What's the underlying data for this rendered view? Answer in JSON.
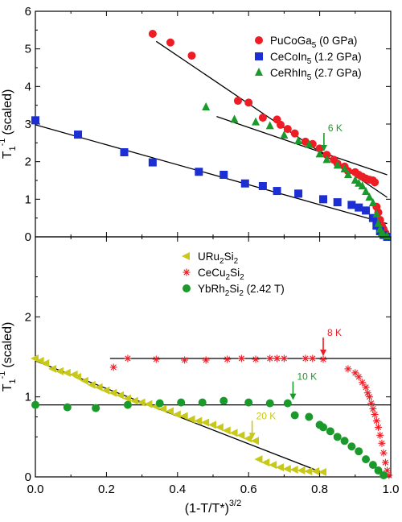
{
  "chart_data": [
    {
      "type": "scatter",
      "ylabel": "T",
      "ylabel_sub": "1",
      "ylabel_sup": "-1",
      "ylabel_suffix": "(scaled)",
      "xlim": [
        0,
        1
      ],
      "ylim": [
        0,
        6
      ],
      "yticks": [
        "0",
        "1",
        "2",
        "3",
        "4",
        "5",
        "6"
      ],
      "grid": false,
      "legend_position": "top-right",
      "series": [
        {
          "name": "PuCoGa",
          "name_sub": "5",
          "name_suffix": " (0 GPa)",
          "marker": "circle",
          "color": "#ee1c24",
          "points": [
            [
              0.33,
              5.4
            ],
            [
              0.38,
              5.17
            ],
            [
              0.44,
              4.82
            ],
            [
              0.57,
              3.62
            ],
            [
              0.6,
              3.57
            ],
            [
              0.64,
              3.17
            ],
            [
              0.68,
              3.12
            ],
            [
              0.69,
              2.98
            ],
            [
              0.71,
              2.87
            ],
            [
              0.73,
              2.75
            ],
            [
              0.76,
              2.53
            ],
            [
              0.78,
              2.47
            ],
            [
              0.8,
              2.35
            ],
            [
              0.82,
              2.18
            ],
            [
              0.84,
              2.05
            ],
            [
              0.85,
              1.95
            ],
            [
              0.87,
              1.87
            ],
            [
              0.88,
              1.75
            ],
            [
              0.9,
              1.72
            ],
            [
              0.91,
              1.65
            ],
            [
              0.92,
              1.6
            ],
            [
              0.93,
              1.55
            ],
            [
              0.94,
              1.52
            ],
            [
              0.95,
              1.5
            ],
            [
              0.955,
              1.45
            ],
            [
              0.96,
              0.8
            ],
            [
              0.965,
              0.65
            ],
            [
              0.97,
              0.45
            ],
            [
              0.975,
              0.3
            ],
            [
              0.98,
              0.2
            ],
            [
              0.985,
              0.1
            ]
          ]
        },
        {
          "name": "CeCoIn",
          "name_sub": "5",
          "name_suffix": " (1.2 GPa)",
          "marker": "square",
          "color": "#1c2fd4",
          "points": [
            [
              0.0,
              3.1
            ],
            [
              0.12,
              2.72
            ],
            [
              0.25,
              2.25
            ],
            [
              0.33,
              1.98
            ],
            [
              0.46,
              1.73
            ],
            [
              0.53,
              1.65
            ],
            [
              0.59,
              1.42
            ],
            [
              0.64,
              1.35
            ],
            [
              0.68,
              1.22
            ],
            [
              0.74,
              1.15
            ],
            [
              0.81,
              1.0
            ],
            [
              0.85,
              0.92
            ],
            [
              0.89,
              0.85
            ],
            [
              0.91,
              0.78
            ],
            [
              0.93,
              0.7
            ],
            [
              0.95,
              0.5
            ],
            [
              0.96,
              0.3
            ],
            [
              0.97,
              0.15
            ],
            [
              0.98,
              0.05
            ],
            [
              0.99,
              0.0
            ]
          ]
        },
        {
          "name": "CeRhIn",
          "name_sub": "5",
          "name_suffix": " (2.7 GPa)",
          "marker": "triangle-up",
          "color": "#1a9a2a",
          "points": [
            [
              0.48,
              3.45
            ],
            [
              0.56,
              3.12
            ],
            [
              0.62,
              3.05
            ],
            [
              0.66,
              2.95
            ],
            [
              0.7,
              2.7
            ],
            [
              0.74,
              2.55
            ],
            [
              0.77,
              2.45
            ],
            [
              0.8,
              2.2
            ],
            [
              0.82,
              2.05
            ],
            [
              0.85,
              1.9
            ],
            [
              0.87,
              1.8
            ],
            [
              0.88,
              1.65
            ],
            [
              0.9,
              1.5
            ],
            [
              0.91,
              1.42
            ],
            [
              0.92,
              1.35
            ],
            [
              0.93,
              1.2
            ],
            [
              0.94,
              1.05
            ],
            [
              0.95,
              0.9
            ],
            [
              0.96,
              0.6
            ],
            [
              0.965,
              0.35
            ],
            [
              0.97,
              0.2
            ],
            [
              0.975,
              0.1
            ],
            [
              0.98,
              0.05
            ],
            [
              0.99,
              0.02
            ]
          ]
        }
      ],
      "fit_lines": [
        {
          "color": "#000000",
          "from": [
            0.34,
            5.2
          ],
          "to": [
            0.99,
            1.05
          ]
        },
        {
          "color": "#000000",
          "from": [
            0.51,
            3.2
          ],
          "to": [
            0.99,
            1.65
          ]
        },
        {
          "color": "#000000",
          "from": [
            0.0,
            2.98
          ],
          "to": [
            0.99,
            0.35
          ]
        }
      ],
      "annotations": [
        {
          "text": "6 K",
          "color": "#1a9a2a",
          "x": 0.812,
          "y": 2.25,
          "arrow": "down"
        }
      ]
    },
    {
      "type": "scatter",
      "xlabel": "(1-T/T*)",
      "xlabel_sup": "3/2",
      "ylabel": "T",
      "ylabel_sub": "1",
      "ylabel_sup": "-1",
      "ylabel_suffix": "(scaled)",
      "xlim": [
        0,
        1
      ],
      "ylim": [
        0,
        3
      ],
      "xticks": [
        "0.0",
        "0.2",
        "0.4",
        "0.6",
        "0.8",
        "1.0"
      ],
      "yticks": [
        "0",
        "1",
        "2"
      ],
      "grid": false,
      "legend_position": "top-center",
      "series": [
        {
          "name": "URu",
          "name_sub": "2",
          "name_suffix": "Si",
          "name_sub2": "2",
          "marker": "triangle-left",
          "color": "#c8c818",
          "points": [
            [
              0.0,
              1.48
            ],
            [
              0.015,
              1.45
            ],
            [
              0.03,
              1.42
            ],
            [
              0.05,
              1.35
            ],
            [
              0.07,
              1.32
            ],
            [
              0.09,
              1.3
            ],
            [
              0.11,
              1.28
            ],
            [
              0.12,
              1.25
            ],
            [
              0.14,
              1.2
            ],
            [
              0.16,
              1.15
            ],
            [
              0.18,
              1.12
            ],
            [
              0.2,
              1.08
            ],
            [
              0.22,
              1.05
            ],
            [
              0.24,
              1.02
            ],
            [
              0.26,
              0.98
            ],
            [
              0.28,
              0.95
            ],
            [
              0.3,
              0.93
            ],
            [
              0.32,
              0.91
            ],
            [
              0.34,
              0.88
            ],
            [
              0.36,
              0.85
            ],
            [
              0.38,
              0.82
            ],
            [
              0.4,
              0.78
            ],
            [
              0.42,
              0.76
            ],
            [
              0.44,
              0.72
            ],
            [
              0.46,
              0.7
            ],
            [
              0.48,
              0.68
            ],
            [
              0.5,
              0.65
            ],
            [
              0.52,
              0.62
            ],
            [
              0.54,
              0.58
            ],
            [
              0.56,
              0.55
            ],
            [
              0.58,
              0.52
            ],
            [
              0.6,
              0.48
            ],
            [
              0.62,
              0.45
            ],
            [
              0.63,
              0.22
            ],
            [
              0.65,
              0.18
            ],
            [
              0.67,
              0.15
            ],
            [
              0.69,
              0.12
            ],
            [
              0.71,
              0.1
            ],
            [
              0.73,
              0.09
            ],
            [
              0.75,
              0.08
            ],
            [
              0.77,
              0.07
            ],
            [
              0.79,
              0.07
            ],
            [
              0.81,
              0.06
            ]
          ]
        },
        {
          "name": "CeCu",
          "name_sub": "2",
          "name_suffix": "Si",
          "name_sub2": "2",
          "marker": "asterisk",
          "color": "#ee1c24",
          "points": [
            [
              0.22,
              1.37
            ],
            [
              0.26,
              1.48
            ],
            [
              0.34,
              1.47
            ],
            [
              0.42,
              1.46
            ],
            [
              0.48,
              1.46
            ],
            [
              0.54,
              1.47
            ],
            [
              0.58,
              1.48
            ],
            [
              0.62,
              1.47
            ],
            [
              0.66,
              1.48
            ],
            [
              0.68,
              1.48
            ],
            [
              0.7,
              1.48
            ],
            [
              0.76,
              1.48
            ],
            [
              0.78,
              1.48
            ],
            [
              0.81,
              1.47
            ],
            [
              0.88,
              1.35
            ],
            [
              0.9,
              1.3
            ],
            [
              0.91,
              1.25
            ],
            [
              0.92,
              1.18
            ],
            [
              0.93,
              1.12
            ],
            [
              0.935,
              1.05
            ],
            [
              0.94,
              1.0
            ],
            [
              0.945,
              0.92
            ],
            [
              0.95,
              0.85
            ],
            [
              0.955,
              0.78
            ],
            [
              0.96,
              0.7
            ],
            [
              0.965,
              0.62
            ],
            [
              0.97,
              0.52
            ],
            [
              0.975,
              0.42
            ],
            [
              0.98,
              0.3
            ],
            [
              0.985,
              0.18
            ],
            [
              0.99,
              0.08
            ],
            [
              0.995,
              0.02
            ]
          ]
        },
        {
          "name": "YbRh",
          "name_sub": "2",
          "name_suffix": "Si",
          "name_sub2": "2",
          "name_tail": " (2.42 T)",
          "marker": "circle",
          "color": "#1a9a2a",
          "points": [
            [
              0.0,
              0.9
            ],
            [
              0.09,
              0.87
            ],
            [
              0.17,
              0.86
            ],
            [
              0.26,
              0.9
            ],
            [
              0.35,
              0.92
            ],
            [
              0.41,
              0.93
            ],
            [
              0.47,
              0.93
            ],
            [
              0.53,
              0.95
            ],
            [
              0.6,
              0.93
            ],
            [
              0.66,
              0.92
            ],
            [
              0.71,
              0.92
            ],
            [
              0.73,
              0.77
            ],
            [
              0.77,
              0.75
            ],
            [
              0.8,
              0.65
            ],
            [
              0.81,
              0.62
            ],
            [
              0.83,
              0.57
            ],
            [
              0.85,
              0.5
            ],
            [
              0.87,
              0.45
            ],
            [
              0.89,
              0.38
            ],
            [
              0.91,
              0.32
            ],
            [
              0.93,
              0.22
            ],
            [
              0.95,
              0.15
            ],
            [
              0.965,
              0.08
            ],
            [
              0.98,
              0.02
            ]
          ]
        }
      ],
      "fit_lines": [
        {
          "color": "#000000",
          "from": [
            0.21,
            1.48
          ],
          "to": [
            1.0,
            1.48
          ]
        },
        {
          "color": "#000000",
          "from": [
            0.0,
            0.9
          ],
          "to": [
            1.0,
            0.9
          ]
        },
        {
          "color": "#000000",
          "from": [
            0.0,
            1.45
          ],
          "to": [
            0.81,
            0.05
          ]
        }
      ],
      "annotations": [
        {
          "text": "8 K",
          "color": "#ee1c24",
          "x": 0.81,
          "y": 1.5,
          "arrow": "down"
        },
        {
          "text": "10 K",
          "color": "#1a9a2a",
          "x": 0.725,
          "y": 0.95,
          "arrow": "down"
        },
        {
          "text": "20 K",
          "color": "#c8c818",
          "x": 0.61,
          "y": 0.46,
          "arrow": "down"
        }
      ]
    }
  ]
}
